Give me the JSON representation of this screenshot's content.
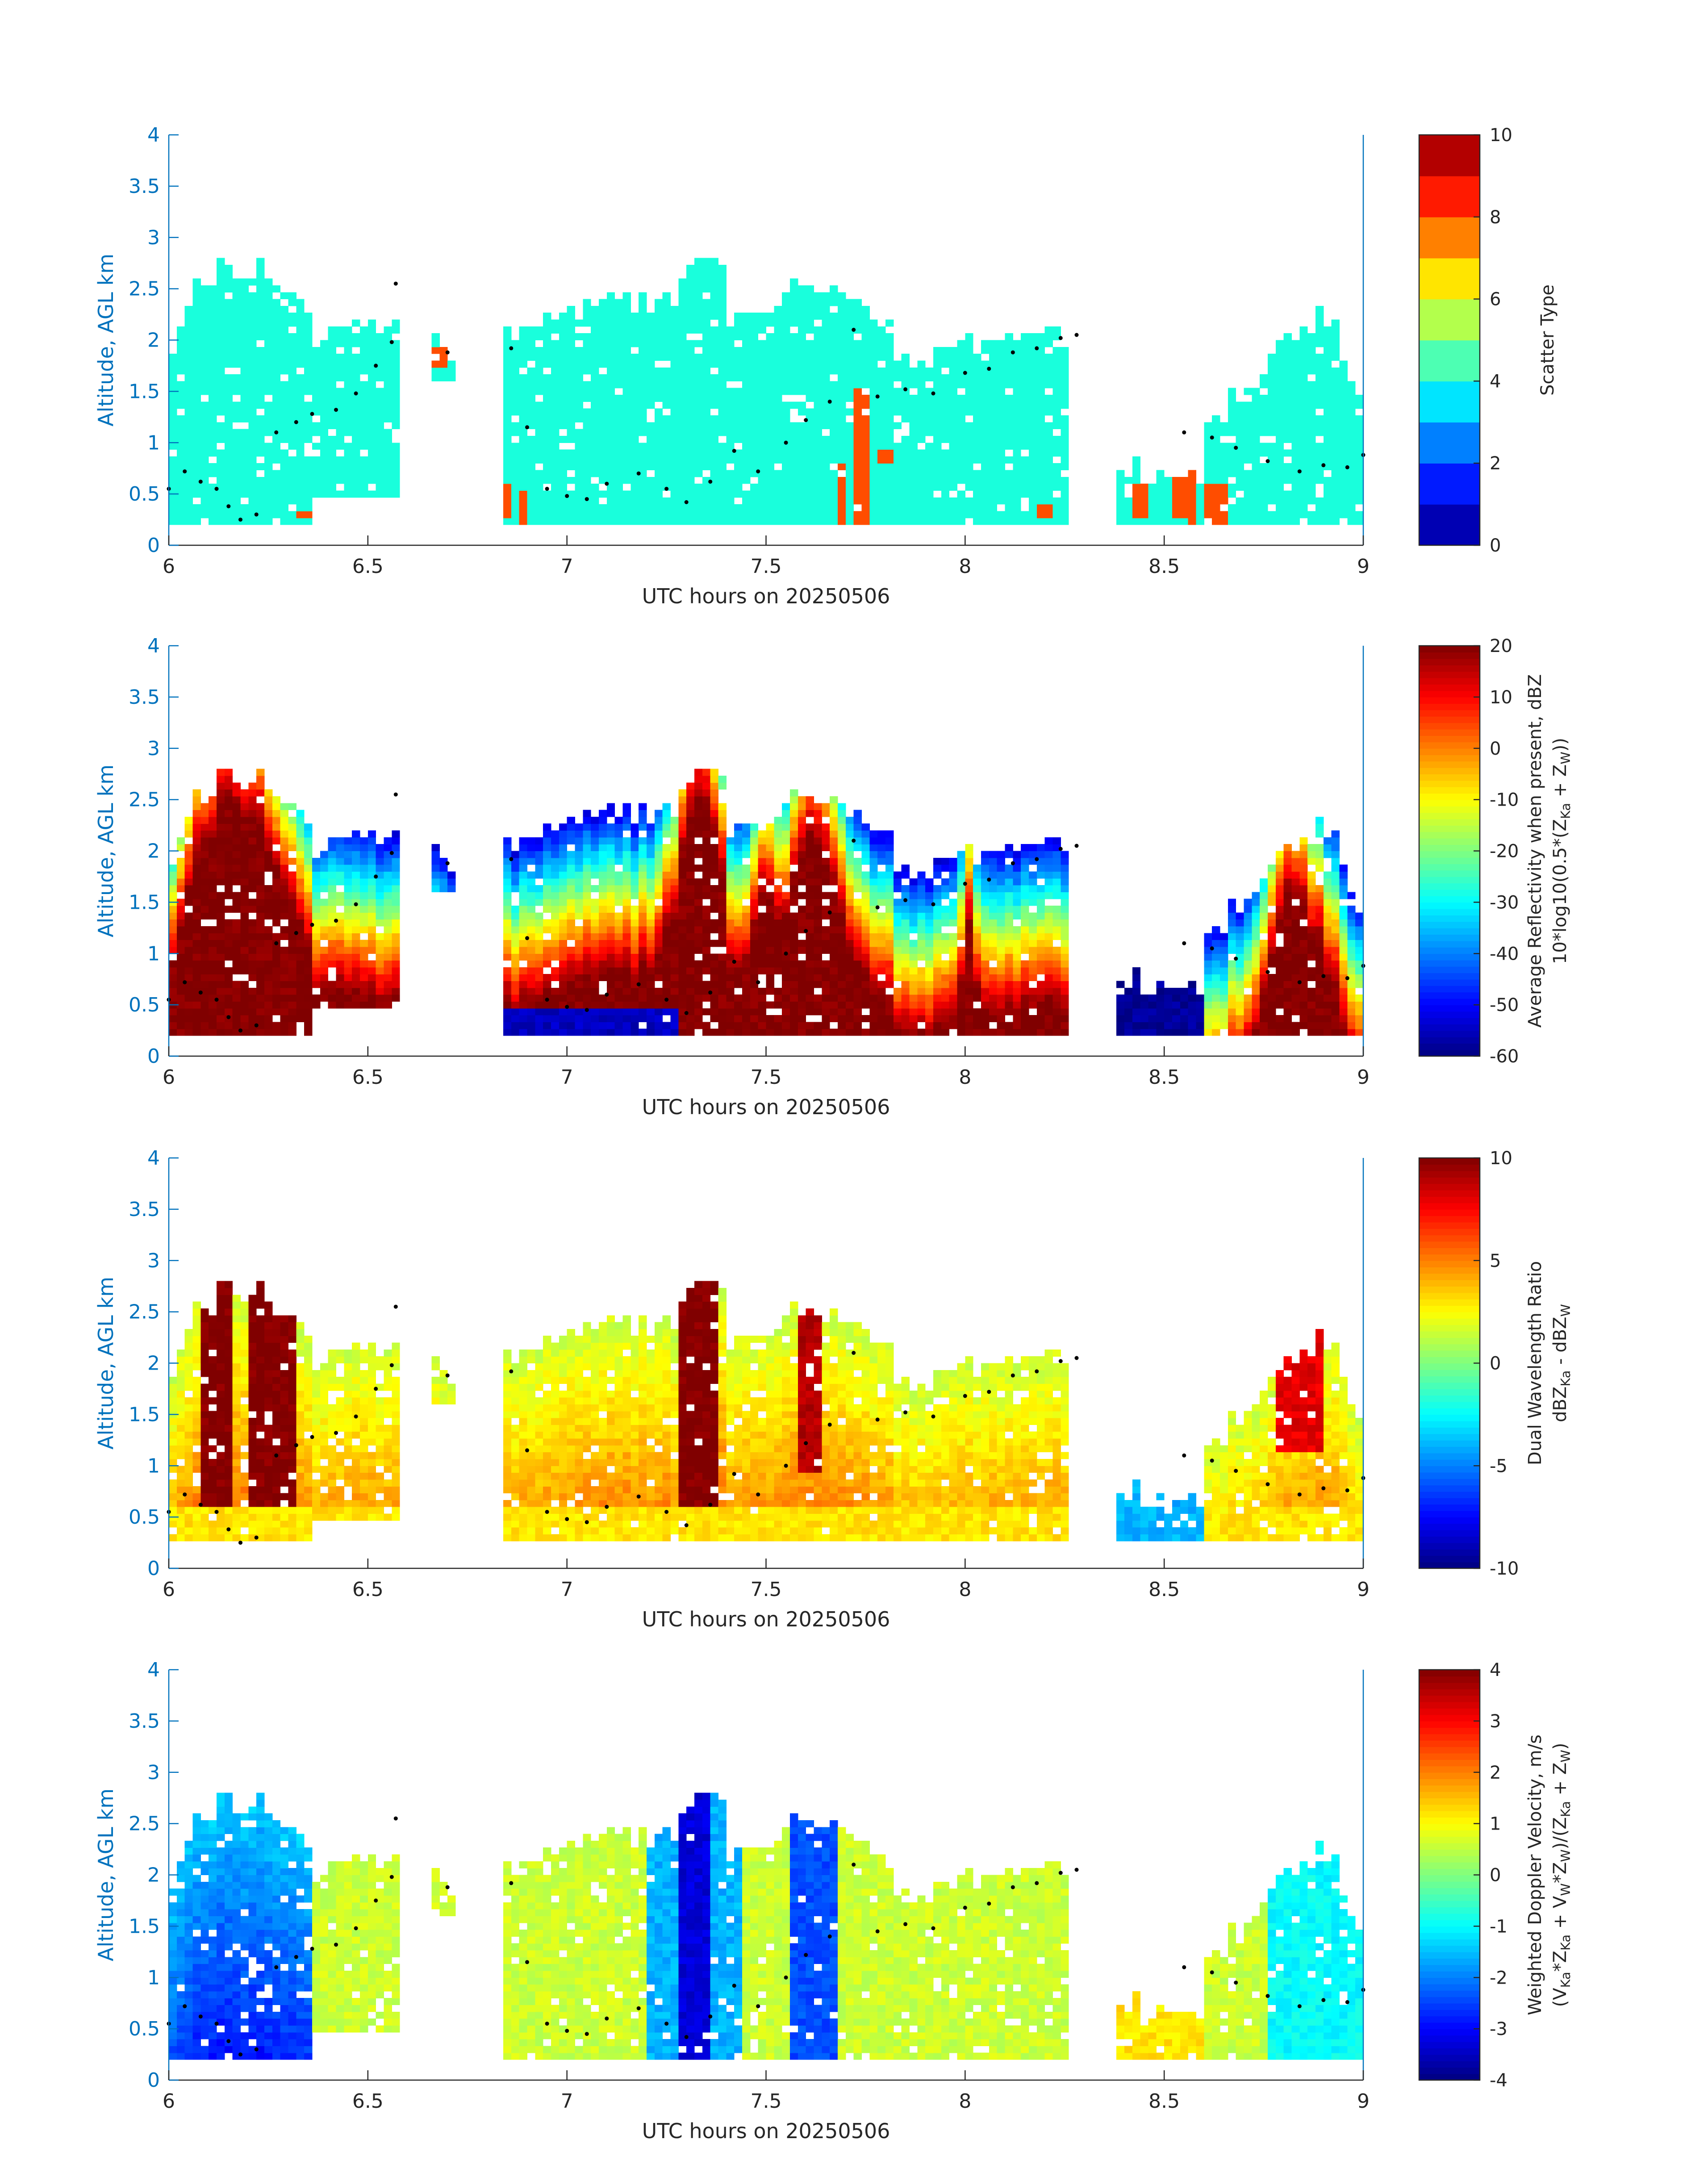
{
  "chart_data": [
    {
      "type": "heatmap",
      "panel": "scatter-type",
      "xlabel": "UTC hours on 20250506",
      "ylabel": "Altitude, AGL km",
      "xlim": [
        6,
        9
      ],
      "ylim": [
        0,
        4
      ],
      "xticks": [
        6,
        6.5,
        7,
        7.5,
        8,
        8.5,
        9
      ],
      "yticks": [
        0,
        0.5,
        1,
        1.5,
        2,
        2.5,
        3,
        3.5,
        4
      ],
      "colorbar": {
        "label_lines": [
          "Scatter Type"
        ],
        "range": [
          0,
          10
        ],
        "ticks": [
          0,
          2,
          4,
          6,
          8,
          10
        ],
        "colormap": "jet"
      },
      "field": "scatter",
      "bottom_km": 0.18,
      "overlay_dots": "cloud-top markers"
    },
    {
      "type": "heatmap",
      "panel": "reflectivity",
      "xlabel": "UTC hours on 20250506",
      "ylabel": "Altitude, AGL km",
      "xlim": [
        6,
        9
      ],
      "ylim": [
        0,
        4
      ],
      "xticks": [
        6,
        6.5,
        7,
        7.5,
        8,
        8.5,
        9
      ],
      "yticks": [
        0,
        0.5,
        1,
        1.5,
        2,
        2.5,
        3,
        3.5,
        4
      ],
      "colorbar": {
        "label_lines": [
          "Average Reflectivity when present, dBZ",
          "10*log10(0.5*(Z_Ka + Z_W))"
        ],
        "range": [
          -60,
          20
        ],
        "ticks": [
          -60,
          -50,
          -40,
          -30,
          -20,
          -10,
          0,
          10,
          20
        ],
        "colormap": "jet"
      },
      "field": "reflectivity",
      "bottom_km": 0.18
    },
    {
      "type": "heatmap",
      "panel": "dual-wavelength-ratio",
      "xlabel": "UTC hours on 20250506",
      "ylabel": "Altitude, AGL km",
      "xlim": [
        6,
        9
      ],
      "ylim": [
        0,
        4
      ],
      "xticks": [
        6,
        6.5,
        7,
        7.5,
        8,
        8.5,
        9
      ],
      "yticks": [
        0,
        0.5,
        1,
        1.5,
        2,
        2.5,
        3,
        3.5,
        4
      ],
      "colorbar": {
        "label_lines": [
          "Dual Wavelength Ratio",
          "dBZ_Ka - dBZ_W"
        ],
        "range": [
          -10,
          10
        ],
        "ticks": [
          -10,
          -5,
          0,
          5,
          10
        ],
        "colormap": "jet"
      },
      "field": "dwr",
      "bottom_km": 0.26
    },
    {
      "type": "heatmap",
      "panel": "doppler-velocity",
      "xlabel": "UTC hours on 20250506",
      "ylabel": "Altitude, AGL km",
      "xlim": [
        6,
        9
      ],
      "ylim": [
        0,
        4
      ],
      "xticks": [
        6,
        6.5,
        7,
        7.5,
        8,
        8.5,
        9
      ],
      "yticks": [
        0,
        0.5,
        1,
        1.5,
        2,
        2.5,
        3,
        3.5,
        4
      ],
      "colorbar": {
        "label_lines": [
          "Weighted Doppler Velocity, m/s",
          "(V_Ka*Z_Ka + V_W*Z_W)/(Z_Ka + Z_W)"
        ],
        "range": [
          -4,
          4
        ],
        "ticks": [
          -4,
          -3,
          -2,
          -1,
          0,
          1,
          2,
          3,
          4
        ],
        "colormap": "jet"
      },
      "field": "velocity",
      "bottom_km": 0.18
    }
  ],
  "cloud_segments": [
    {
      "start": 6.0,
      "end": 6.36,
      "top": [
        [
          6.0,
          1.85
        ],
        [
          6.06,
          2.5
        ],
        [
          6.16,
          2.75
        ],
        [
          6.26,
          2.65
        ],
        [
          6.36,
          2.3
        ]
      ]
    },
    {
      "start": 6.36,
      "end": 6.58,
      "top": [
        [
          6.36,
          2.0
        ],
        [
          6.48,
          2.2
        ],
        [
          6.58,
          2.1
        ]
      ],
      "base": 0.5
    },
    {
      "start": 6.66,
      "end": 6.73,
      "top": [
        [
          6.66,
          2.0
        ],
        [
          6.73,
          1.85
        ]
      ],
      "base": 1.6
    },
    {
      "start": 6.84,
      "end": 7.28,
      "top": [
        [
          6.84,
          2.05
        ],
        [
          7.0,
          2.3
        ],
        [
          7.15,
          2.35
        ],
        [
          7.28,
          2.4
        ]
      ]
    },
    {
      "start": 7.28,
      "end": 7.4,
      "top": [
        [
          7.28,
          2.55
        ],
        [
          7.34,
          2.75
        ],
        [
          7.4,
          2.6
        ]
      ]
    },
    {
      "start": 7.4,
      "end": 7.82,
      "top": [
        [
          7.4,
          2.2
        ],
        [
          7.52,
          2.3
        ],
        [
          7.6,
          2.55
        ],
        [
          7.7,
          2.35
        ],
        [
          7.82,
          2.1
        ]
      ]
    },
    {
      "start": 7.82,
      "end": 8.27,
      "top": [
        [
          7.82,
          1.7
        ],
        [
          8.0,
          1.95
        ],
        [
          8.15,
          2.1
        ],
        [
          8.27,
          2.05
        ]
      ]
    },
    {
      "start": 8.38,
      "end": 8.6,
      "top": [
        [
          8.38,
          0.75
        ],
        [
          8.5,
          0.7
        ],
        [
          8.6,
          0.65
        ]
      ]
    },
    {
      "start": 8.6,
      "end": 9.0,
      "top": [
        [
          8.6,
          1.15
        ],
        [
          8.72,
          1.6
        ],
        [
          8.8,
          2.05
        ],
        [
          8.92,
          2.25
        ],
        [
          9.0,
          1.25
        ]
      ]
    }
  ],
  "cloud_top_markers": [
    [
      6.0,
      0.55
    ],
    [
      6.04,
      0.72
    ],
    [
      6.08,
      0.62
    ],
    [
      6.12,
      0.55
    ],
    [
      6.15,
      0.38
    ],
    [
      6.18,
      0.25
    ],
    [
      6.22,
      0.3
    ],
    [
      6.27,
      1.1
    ],
    [
      6.32,
      1.2
    ],
    [
      6.36,
      1.28
    ],
    [
      6.42,
      1.32
    ],
    [
      6.47,
      1.48
    ],
    [
      6.52,
      1.75
    ],
    [
      6.56,
      1.98
    ],
    [
      6.57,
      2.55
    ],
    [
      6.7,
      1.88
    ],
    [
      6.86,
      1.92
    ],
    [
      6.9,
      1.15
    ],
    [
      6.95,
      0.55
    ],
    [
      7.0,
      0.48
    ],
    [
      7.05,
      0.45
    ],
    [
      7.1,
      0.6
    ],
    [
      7.18,
      0.7
    ],
    [
      7.25,
      0.55
    ],
    [
      7.3,
      0.42
    ],
    [
      7.36,
      0.62
    ],
    [
      7.42,
      0.92
    ],
    [
      7.48,
      0.72
    ],
    [
      7.55,
      1.0
    ],
    [
      7.6,
      1.22
    ],
    [
      7.66,
      1.4
    ],
    [
      7.72,
      2.1
    ],
    [
      7.78,
      1.45
    ],
    [
      7.85,
      1.52
    ],
    [
      7.92,
      1.48
    ],
    [
      8.0,
      1.68
    ],
    [
      8.06,
      1.72
    ],
    [
      8.12,
      1.88
    ],
    [
      8.18,
      1.92
    ],
    [
      8.24,
      2.02
    ],
    [
      8.28,
      2.05
    ],
    [
      8.55,
      1.1
    ],
    [
      8.62,
      1.05
    ],
    [
      8.68,
      0.95
    ],
    [
      8.76,
      0.82
    ],
    [
      8.84,
      0.72
    ],
    [
      8.9,
      0.78
    ],
    [
      8.96,
      0.76
    ],
    [
      9.0,
      0.88
    ]
  ],
  "scatter_orange_columns": [
    [
      6.34,
      0.25,
      0.3
    ],
    [
      6.6,
      0.2,
      0.4
    ],
    [
      6.67,
      0.2,
      0.4
    ],
    [
      6.68,
      1.75,
      1.9
    ],
    [
      6.84,
      0.3,
      0.6
    ],
    [
      6.89,
      0.2,
      0.5
    ],
    [
      7.69,
      0.2,
      0.8
    ],
    [
      7.74,
      0.2,
      1.5
    ],
    [
      7.8,
      0.8,
      0.9
    ],
    [
      8.2,
      0.3,
      0.4
    ],
    [
      8.44,
      0.3,
      0.6
    ],
    [
      8.54,
      0.3,
      0.7
    ],
    [
      8.57,
      0.2,
      0.8
    ],
    [
      8.61,
      0.2,
      0.6
    ],
    [
      8.64,
      0.2,
      0.6
    ]
  ]
}
